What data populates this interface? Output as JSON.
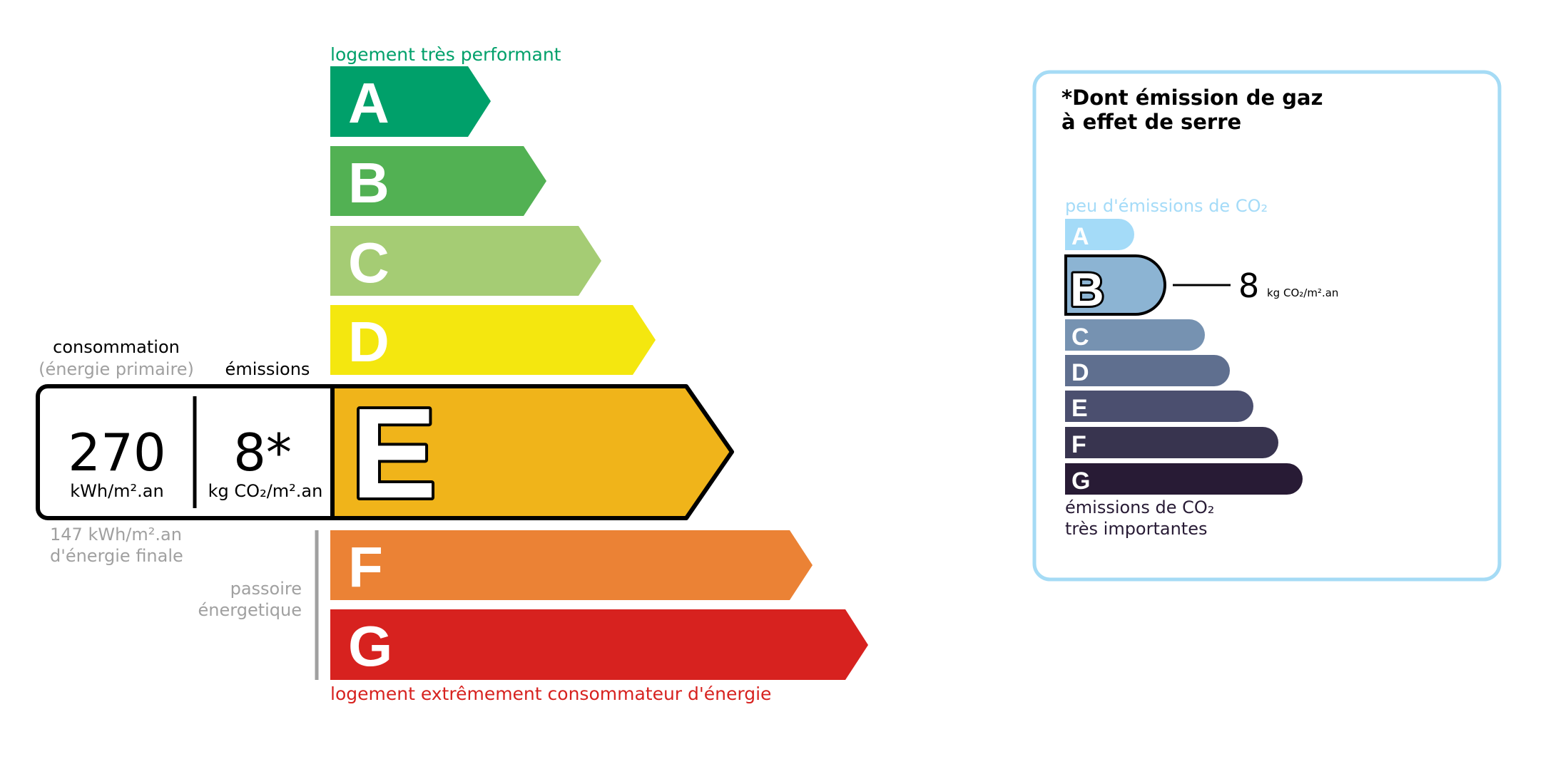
{
  "energy": {
    "top_label": "logement très performant",
    "bottom_label": "logement extrêmement consommateur d'énergie",
    "top_label_color": "#00a06a",
    "bottom_label_color": "#d7221f",
    "classes": [
      {
        "letter": "A",
        "color": "#00a06a"
      },
      {
        "letter": "B",
        "color": "#52b153"
      },
      {
        "letter": "C",
        "color": "#a5cc74"
      },
      {
        "letter": "D",
        "color": "#f4e70f"
      },
      {
        "letter": "E",
        "color": "#f0b41a"
      },
      {
        "letter": "F",
        "color": "#eb8235"
      },
      {
        "letter": "G",
        "color": "#d7221f"
      }
    ],
    "current_class": "E",
    "consumption_label": "consommation",
    "consumption_sublabel": "(énergie primaire)",
    "emissions_label": "émissions",
    "consumption_value": "270",
    "consumption_unit": "kWh/m².an",
    "emissions_value": "8*",
    "emissions_unit": "kg CO₂/m².an",
    "final_energy_value": "147 kWh/m².an",
    "final_energy_label": "d'énergie finale",
    "passoire_line1": "passoire",
    "passoire_line2": "énergetique"
  },
  "ghg": {
    "title_line1": "*Dont émission de gaz",
    "title_line2": "à effet de serre",
    "top_label": "peu d'émissions de CO₂",
    "bottom_label_line1": "émissions de CO₂",
    "bottom_label_line2": "très importantes",
    "border_color": "#a5dbf5",
    "classes": [
      {
        "letter": "A",
        "color": "#a4dbf8"
      },
      {
        "letter": "B",
        "color": "#8cb4d3"
      },
      {
        "letter": "C",
        "color": "#7692b1"
      },
      {
        "letter": "D",
        "color": "#5f6f8f"
      },
      {
        "letter": "E",
        "color": "#4b4f6f"
      },
      {
        "letter": "F",
        "color": "#38344f"
      },
      {
        "letter": "G",
        "color": "#281b35"
      }
    ],
    "current_class": "B",
    "value": "8",
    "unit": "kg CO₂/m².an"
  }
}
